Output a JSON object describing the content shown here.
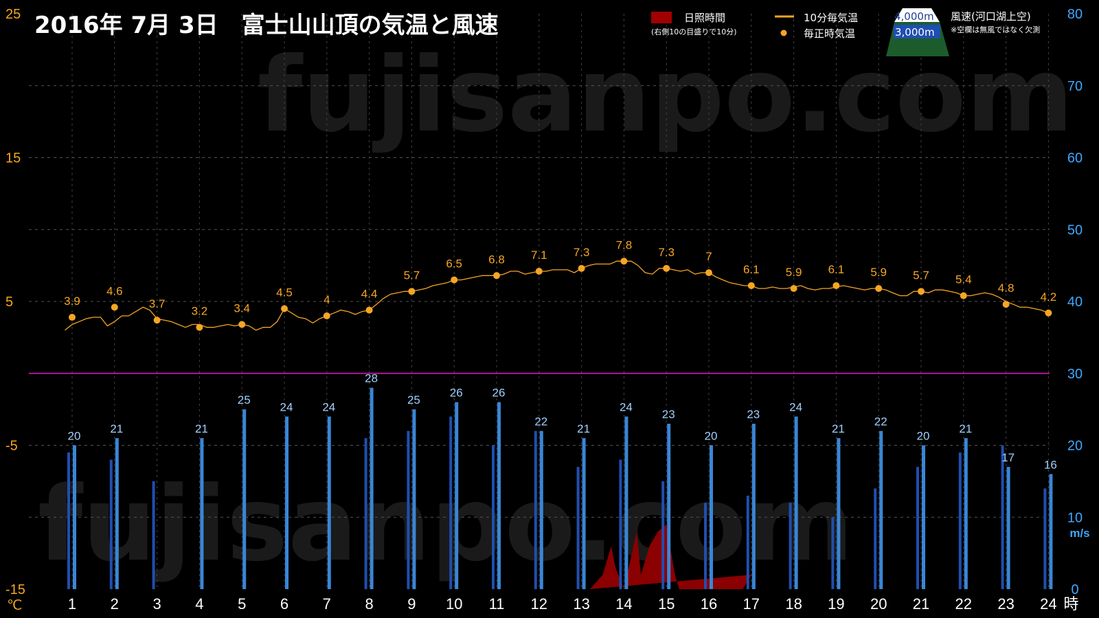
{
  "title": "2016年  7月  3日　富士山山頂の気温と風速",
  "watermark": "fujisanpo.com",
  "legend": {
    "sunshine": "日照時間",
    "sunshine_note": "(右側10の目盛りで10分)",
    "temp_10min": "10分毎気温",
    "temp_hourly": "毎正時気温",
    "alt_4000": "4,000m",
    "alt_3000": "3,000m",
    "wind": "風速(河口湖上空)",
    "wind_note": "※空欄は無風ではなく欠測"
  },
  "axes": {
    "left_unit": "℃",
    "right_unit": "m/s",
    "x_unit": "時"
  },
  "colors": {
    "background": "#000000",
    "temperature": "#f5a623",
    "wind_4000": "#3a86d6",
    "wind_3000": "#1f4fb0",
    "sunshine": "#8b0000",
    "zero_line": "#b0189b",
    "right_axis": "#3fa7ff"
  },
  "chart_data": {
    "type": "bar",
    "title": "2016年  7月  3日　富士山山頂の気温と風速",
    "x": [
      1,
      2,
      3,
      4,
      5,
      6,
      7,
      8,
      9,
      10,
      11,
      12,
      13,
      14,
      15,
      16,
      17,
      18,
      19,
      20,
      21,
      22,
      23,
      24
    ],
    "left_ylim": [
      -15,
      25
    ],
    "left_yticks": [
      -15,
      -5,
      5,
      15,
      25
    ],
    "right_ylim": [
      0,
      80
    ],
    "right_yticks": [
      0,
      10,
      20,
      30,
      40,
      50,
      60,
      70,
      80
    ],
    "grid": true,
    "series": [
      {
        "name": "毎正時気温",
        "axis": "left",
        "values": [
          3.9,
          4.6,
          3.7,
          3.2,
          3.4,
          4.5,
          4,
          4.4,
          5.7,
          6.5,
          6.8,
          7.1,
          7.3,
          7.8,
          7.3,
          7,
          6.1,
          5.9,
          6.1,
          5.9,
          5.7,
          5.4,
          4.8,
          4.2
        ]
      },
      {
        "name": "10分毎気温",
        "axis": "left",
        "x": [
          0.83,
          1,
          1.17,
          1.33,
          1.5,
          1.67,
          1.83,
          2,
          2.17,
          2.33,
          2.5,
          2.67,
          2.83,
          3,
          3.17,
          3.33,
          3.5,
          3.67,
          3.83,
          4,
          4.17,
          4.33,
          4.5,
          4.67,
          4.83,
          5,
          5.17,
          5.33,
          5.5,
          5.67,
          5.83,
          6,
          6.17,
          6.33,
          6.5,
          6.67,
          6.83,
          7,
          7.17,
          7.33,
          7.5,
          7.67,
          7.83,
          8,
          8.17,
          8.33,
          8.5,
          8.67,
          8.83,
          9,
          9.17,
          9.33,
          9.5,
          9.67,
          9.83,
          10,
          10.17,
          10.33,
          10.5,
          10.67,
          10.83,
          11,
          11.17,
          11.33,
          11.5,
          11.67,
          11.83,
          12,
          12.17,
          12.33,
          12.5,
          12.67,
          12.83,
          13,
          13.17,
          13.33,
          13.5,
          13.67,
          13.83,
          14,
          14.17,
          14.33,
          14.5,
          14.67,
          14.83,
          15,
          15.17,
          15.33,
          15.5,
          15.67,
          15.83,
          16,
          16.17,
          16.33,
          16.5,
          16.67,
          16.83,
          17,
          17.17,
          17.33,
          17.5,
          17.67,
          17.83,
          18,
          18.17,
          18.33,
          18.5,
          18.67,
          18.83,
          19,
          19.17,
          19.33,
          19.5,
          19.67,
          19.83,
          20,
          20.17,
          20.33,
          20.5,
          20.67,
          20.83,
          21,
          21.17,
          21.33,
          21.5,
          21.67,
          21.83,
          22,
          22.17,
          22.33,
          22.5,
          22.67,
          22.83,
          23,
          23.17,
          23.33,
          23.5,
          23.67,
          23.83,
          24
        ],
        "values": [
          3,
          3.4,
          3.6,
          3.8,
          3.9,
          3.9,
          3.3,
          3.6,
          4,
          4,
          4.3,
          4.6,
          4.4,
          3.8,
          3.7,
          3.6,
          3.4,
          3.2,
          3.4,
          3.4,
          3.2,
          3.2,
          3.3,
          3.4,
          3.3,
          3.4,
          3.3,
          3,
          3.2,
          3.2,
          3.6,
          4.5,
          4.2,
          3.9,
          3.8,
          3.5,
          3.8,
          4,
          4.2,
          4.4,
          4.3,
          4.1,
          4.3,
          4.4,
          4.8,
          5.2,
          5.5,
          5.6,
          5.7,
          5.7,
          5.8,
          5.9,
          6.1,
          6.2,
          6.3,
          6.5,
          6.5,
          6.6,
          6.7,
          6.8,
          6.8,
          6.8,
          6.9,
          7.1,
          7.1,
          6.9,
          7,
          7.1,
          7.1,
          7.2,
          7.2,
          7.2,
          7.0,
          7.3,
          7.5,
          7.6,
          7.6,
          7.6,
          7.8,
          7.8,
          7.8,
          7.5,
          7.0,
          6.9,
          7.3,
          7.3,
          7.2,
          7.1,
          7.2,
          6.9,
          7,
          7,
          6.7,
          6.5,
          6.3,
          6.2,
          6.1,
          6.1,
          5.9,
          5.9,
          6.0,
          5.9,
          5.9,
          6.0,
          6.1,
          5.9,
          5.8,
          5.9,
          5.9,
          6.0,
          6.1,
          6.0,
          5.9,
          5.8,
          5.9,
          5.9,
          5.8,
          5.6,
          5.4,
          5.4,
          5.7,
          5.7,
          5.6,
          5.8,
          5.8,
          5.7,
          5.6,
          5.4,
          5.4,
          5.5,
          5.6,
          5.5,
          5.3,
          5.0,
          4.8,
          4.6,
          4.6,
          4.5,
          4.4,
          4.2
        ]
      },
      {
        "name": "4,000m",
        "axis": "right",
        "values": [
          20,
          21,
          null,
          21,
          25,
          24,
          24,
          28,
          25,
          26,
          26,
          22,
          21,
          24,
          23,
          20,
          23,
          24,
          21,
          22,
          20,
          21,
          17,
          16
        ]
      },
      {
        "name": "3,000m",
        "axis": "right",
        "values": [
          19,
          18,
          15,
          null,
          null,
          null,
          null,
          21,
          22,
          24,
          20,
          22,
          17,
          18,
          15,
          12,
          13,
          12,
          10,
          14,
          17,
          19,
          20,
          14
        ]
      },
      {
        "name": "日照時間",
        "axis": "right",
        "x": [
          13.2,
          13.5,
          13.7,
          13.8,
          14.0,
          14.3,
          14.4,
          14.6,
          14.8,
          15.0,
          15.2,
          15.3,
          16.8,
          17.0
        ],
        "values": [
          0,
          2,
          6,
          3,
          0,
          8,
          2,
          6,
          8,
          9,
          2,
          0,
          0,
          2
        ]
      }
    ]
  }
}
